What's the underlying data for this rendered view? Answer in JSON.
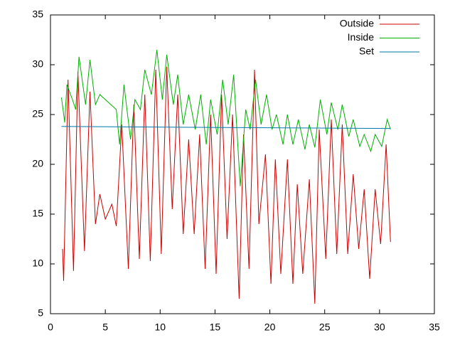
{
  "chart_data": {
    "type": "line",
    "xlim": [
      0,
      35
    ],
    "xticks": [
      0,
      5,
      10,
      15,
      20,
      25,
      30,
      35
    ],
    "ylim": [
      5,
      35
    ],
    "yticks": [
      5,
      10,
      15,
      20,
      25,
      30,
      35
    ],
    "legend": "top-right",
    "series": [
      {
        "name": "Outside",
        "color": "#cc0000",
        "x": [
          1.1,
          1.2,
          1.6,
          2.1,
          2.5,
          3.1,
          3.6,
          4.1,
          4.5,
          5,
          5.6,
          6,
          6.5,
          7.1,
          7.6,
          8.1,
          8.6,
          9.1,
          9.6,
          10.1,
          10.6,
          11.1,
          11.6,
          12.1,
          12.6,
          13.1,
          13.6,
          14.1,
          14.6,
          15.1,
          15.6,
          16.1,
          16.6,
          17.2,
          17.6,
          18.1,
          18.6,
          19,
          19.6,
          20.1,
          20.5,
          21,
          21.6,
          22.1,
          22.5,
          23,
          23.6,
          24.1,
          24.5,
          25.1,
          25.6,
          26.1,
          26.6,
          27.1,
          27.6,
          28.1,
          28.6,
          29.1,
          29.6,
          30.1,
          30.6,
          31
        ],
        "values": [
          11.5,
          8.3,
          28.5,
          9.3,
          29.3,
          11.3,
          27.3,
          14,
          17,
          14.5,
          16,
          13.8,
          24,
          9.5,
          26,
          10.5,
          27,
          10.3,
          29.5,
          11,
          29.8,
          15.5,
          27,
          13,
          22.5,
          13,
          23,
          9.5,
          25,
          9,
          27,
          12.5,
          25,
          6.5,
          23,
          9.5,
          29.5,
          14,
          21,
          8,
          20.5,
          9,
          20.5,
          8,
          18,
          9,
          18.5,
          6,
          23.5,
          10.5,
          24.5,
          11,
          24,
          11,
          19,
          11.5,
          17.5,
          8.5,
          17.5,
          12,
          22,
          12.2
        ]
      },
      {
        "name": "Inside",
        "color": "#00b000",
        "x": [
          1,
          1.3,
          1.5,
          2,
          2.3,
          2.6,
          3.2,
          3.6,
          4.1,
          4.5,
          5,
          6,
          6.3,
          6.7,
          7.3,
          7.7,
          8.2,
          8.6,
          9.2,
          9.7,
          10.2,
          10.6,
          11.2,
          11.6,
          12.1,
          12.6,
          13.2,
          13.7,
          14.2,
          14.6,
          15.2,
          15.7,
          16.2,
          16.7,
          17.3,
          17.8,
          18.2,
          18.7,
          19.2,
          19.7,
          20.2,
          20.6,
          21.2,
          21.6,
          22.1,
          22.6,
          23.2,
          23.6,
          24.1,
          24.6,
          25.2,
          25.6,
          26.2,
          26.6,
          27.2,
          27.6,
          28.2,
          28.6,
          29.2,
          29.6,
          30.2,
          30.7,
          31
        ],
        "values": [
          26.7,
          24.2,
          28,
          26.5,
          25.5,
          30.8,
          26,
          30.5,
          26,
          27,
          26.5,
          25.5,
          22,
          28,
          22.5,
          26.5,
          25.5,
          29.5,
          27,
          31.5,
          26.5,
          31,
          26,
          29,
          24,
          27,
          23.5,
          27,
          22,
          26.5,
          23,
          28.5,
          24,
          29,
          17.8,
          25.5,
          23.5,
          28.5,
          24,
          27,
          23.5,
          25,
          22,
          25,
          22,
          24.5,
          21.5,
          24,
          21.7,
          26.5,
          23,
          26.2,
          23.5,
          26,
          22.8,
          24.5,
          21.8,
          23,
          21.3,
          23,
          21.8,
          24.5,
          23.5
        ]
      },
      {
        "name": "Set",
        "color": "#0077aa",
        "x": [
          1,
          31
        ],
        "values": [
          23.8,
          23.6
        ]
      }
    ]
  }
}
